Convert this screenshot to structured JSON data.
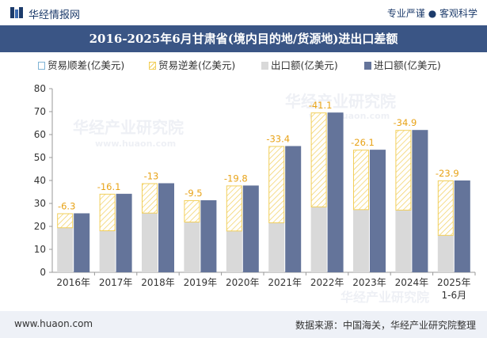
{
  "header": {
    "brand": "华经情报网",
    "tagline": "专业严谨 ● 客观科学"
  },
  "chart_data": {
    "type": "bar",
    "title": "2016-2025年6月甘肃省(境内目的地/货源地)进出口差额",
    "categories": [
      "2016年",
      "2017年",
      "2018年",
      "2019年",
      "2020年",
      "2021年",
      "2022年",
      "2023年",
      "2024年",
      "2025年"
    ],
    "category_sublabels": [
      "",
      "",
      "",
      "",
      "",
      "",
      "",
      "",
      "",
      "1-6月"
    ],
    "ylim": [
      0,
      80
    ],
    "yticks": [
      0,
      10,
      20,
      30,
      40,
      50,
      60,
      70,
      80
    ],
    "series": [
      {
        "name": "贸易顺差(亿美元)",
        "values": [
          null,
          null,
          null,
          null,
          null,
          null,
          null,
          null,
          null,
          null
        ]
      },
      {
        "name": "贸易逆差(亿美元)",
        "values": [
          -6.3,
          -16.1,
          -13,
          -9.5,
          -19.8,
          -33.4,
          -41.1,
          -26.1,
          -34.9,
          -23.9
        ]
      },
      {
        "name": "出口额(亿美元)",
        "values": [
          19.4,
          18.1,
          25.8,
          21.9,
          18.0,
          21.6,
          28.5,
          27.3,
          27.1,
          16.1
        ]
      },
      {
        "name": "进口额(亿美元)",
        "values": [
          25.7,
          34.2,
          38.8,
          31.4,
          37.8,
          55.0,
          69.6,
          53.4,
          62.0,
          40.0
        ]
      }
    ],
    "data_labels": [
      "-6.3",
      "-16.1",
      "-13",
      "-9.5",
      "-19.8",
      "-33.4",
      "-41.1",
      "-26.1",
      "-34.9",
      "-23.9"
    ],
    "grid": false,
    "legend_position": "top",
    "colors": {
      "surplus": "#7fb3d5",
      "deficit": "#f2cf5b",
      "export": "#d9d9d9",
      "import": "#64749a",
      "label": "#e8a317"
    }
  },
  "footer": {
    "url": "www.huaon.com",
    "source": "数据来源：中国海关，华经产业研究院整理"
  },
  "watermark": {
    "text": "华经产业研究院",
    "url": "www.huaon.com"
  }
}
